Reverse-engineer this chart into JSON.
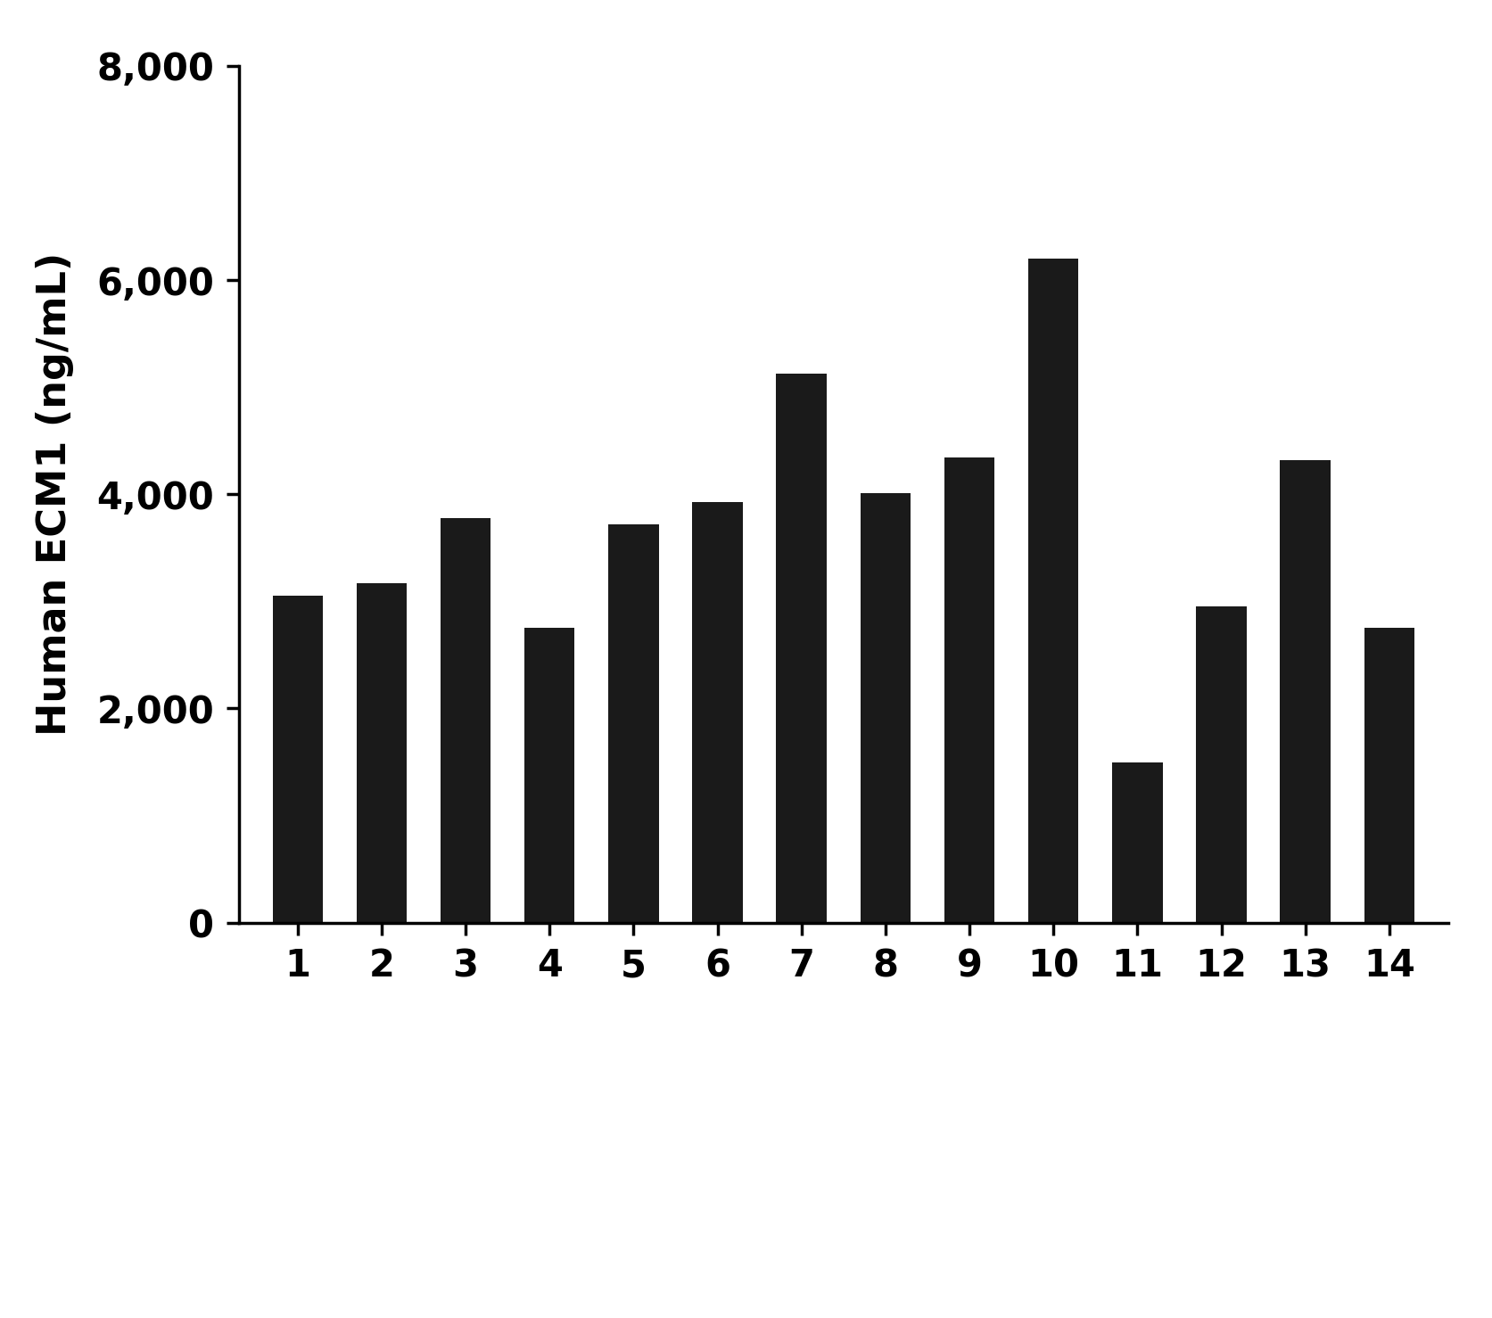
{
  "categories": [
    1,
    2,
    3,
    4,
    5,
    6,
    7,
    8,
    9,
    10,
    11,
    12,
    13,
    14
  ],
  "values": [
    3050,
    3170,
    3780,
    2750,
    3720,
    3930,
    5130,
    4010,
    4340,
    6199,
    1495,
    2950,
    4320,
    2750
  ],
  "bar_color": "#1a1a1a",
  "ylabel": "Human ECM1 (ng/mL)",
  "ylim": [
    0,
    8000
  ],
  "yticks": [
    0,
    2000,
    4000,
    6000,
    8000
  ],
  "background_color": "#ffffff",
  "ylabel_fontsize": 32,
  "tick_fontsize": 30,
  "bar_width": 0.6
}
